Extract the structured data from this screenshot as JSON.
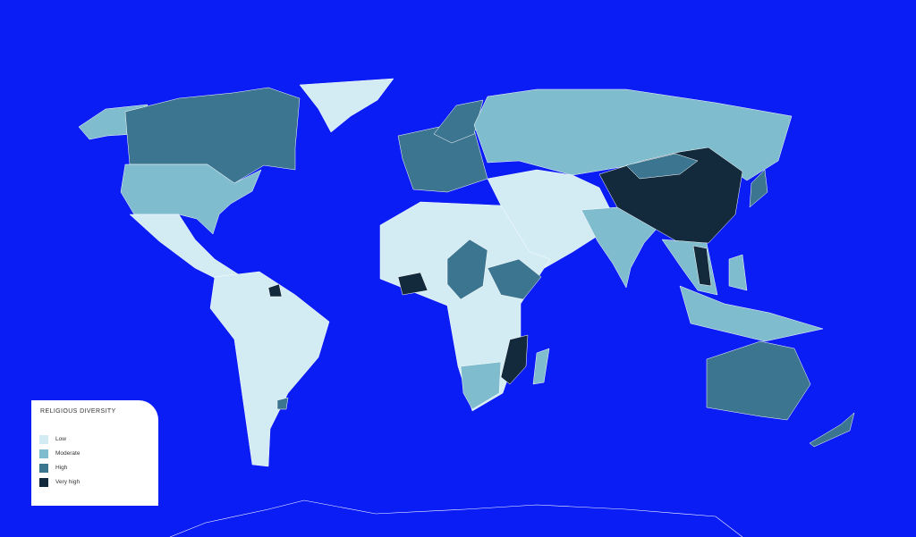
{
  "map": {
    "background_color": "#0b1df5",
    "border_color": "#ffffff"
  },
  "legend": {
    "title": "RELIGIOUS DIVERSITY",
    "items": [
      {
        "key": "low",
        "label": "Low",
        "color": "#d3ecf3"
      },
      {
        "key": "moderate",
        "label": "Moderate",
        "color": "#7fbccd"
      },
      {
        "key": "high",
        "label": "High",
        "color": "#3c7590"
      },
      {
        "key": "very_high",
        "label": "Very high",
        "color": "#132a3d"
      }
    ]
  }
}
